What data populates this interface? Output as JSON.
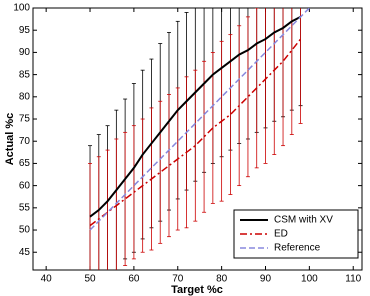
{
  "chart_data": {
    "type": "errorbar-line",
    "xlabel": "Target %c",
    "ylabel": "Actual %c",
    "xlim": [
      37,
      112
    ],
    "ylim": [
      41,
      100
    ],
    "xticks": [
      40,
      50,
      60,
      70,
      80,
      90,
      100,
      110
    ],
    "yticks": [
      45,
      50,
      55,
      60,
      65,
      70,
      75,
      80,
      85,
      90,
      95,
      100
    ],
    "legend": "lower right",
    "series": [
      {
        "name": "CSM with XV",
        "color": "#000000",
        "dash": "solid",
        "x": [
          50,
          52,
          54,
          56,
          58,
          60,
          62,
          64,
          66,
          68,
          70,
          72,
          74,
          76,
          78,
          80,
          82,
          84,
          86,
          88,
          90,
          92,
          94,
          96,
          98
        ],
        "values": [
          53,
          54.5,
          56.5,
          59,
          61.5,
          64,
          67,
          69.5,
          72,
          74.5,
          77,
          79,
          81,
          83,
          85,
          86.5,
          88,
          89.5,
          90.5,
          92,
          93,
          94.5,
          95.5,
          97,
          98
        ],
        "errors": [
          16,
          17,
          17,
          18,
          18,
          19,
          19,
          19,
          20,
          20,
          20,
          20,
          20,
          20,
          20,
          20,
          20,
          20,
          20,
          20,
          20,
          20,
          20,
          20,
          20
        ]
      },
      {
        "name": "ED",
        "color": "#cc0000",
        "dash": "dashdot",
        "x": [
          50,
          52,
          54,
          56,
          58,
          60,
          62,
          64,
          66,
          68,
          70,
          72,
          74,
          76,
          78,
          80,
          82,
          84,
          86,
          88,
          90,
          92,
          94,
          96,
          98
        ],
        "values": [
          51,
          52.5,
          54,
          55.5,
          57,
          58.5,
          60,
          61.5,
          63,
          64.5,
          66,
          67.5,
          69,
          71,
          73,
          74.5,
          76,
          78,
          80,
          82,
          84,
          86,
          88,
          90.5,
          93
        ],
        "errors": [
          14,
          14,
          14,
          15,
          15,
          15,
          15,
          16,
          16,
          16,
          16,
          17,
          17,
          17,
          17,
          18,
          18,
          18,
          18,
          18,
          19,
          19,
          19,
          19,
          19
        ]
      },
      {
        "name": "Reference",
        "color": "#8888dd",
        "dash": "dashed",
        "x": [
          50,
          100
        ],
        "values": [
          50,
          100
        ]
      }
    ]
  }
}
